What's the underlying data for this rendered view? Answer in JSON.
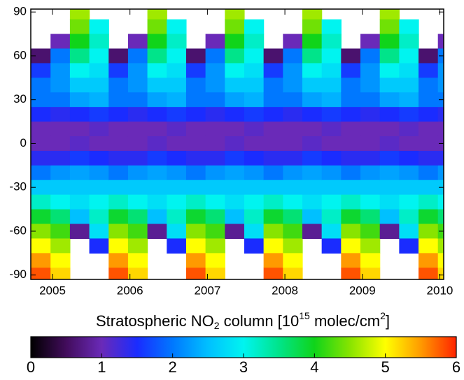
{
  "chart_data": {
    "type": "heatmap",
    "x": [
      2004.85,
      2005.1,
      2005.35,
      2005.6,
      2005.85,
      2006.1,
      2006.35,
      2006.6,
      2006.85,
      2007.1,
      2007.35,
      2007.6,
      2007.85,
      2008.1,
      2008.35,
      2008.6,
      2008.85,
      2009.1,
      2009.35,
      2009.6,
      2009.85,
      2010.1
    ],
    "y": [
      90,
      80,
      70,
      60,
      50,
      40,
      30,
      20,
      10,
      0,
      -10,
      -20,
      -30,
      -40,
      -50,
      -60,
      -70,
      -80,
      -90
    ],
    "z": [
      [
        null,
        null,
        null,
        0.6,
        1.6,
        2.0,
        2.0,
        1.5,
        1.0,
        1.0,
        1.4,
        2.0,
        2.6,
        3.2,
        3.9,
        4.5,
        5.0,
        5.5,
        5.8
      ],
      [
        null,
        null,
        1.0,
        2.0,
        2.2,
        2.2,
        2.0,
        1.4,
        1.0,
        1.0,
        1.4,
        2.2,
        2.6,
        3.0,
        3.6,
        4.2,
        4.6,
        5.0,
        5.2
      ],
      [
        4.6,
        4.4,
        4.0,
        3.5,
        3.0,
        2.6,
        2.3,
        1.5,
        1.0,
        1.1,
        1.6,
        2.3,
        2.6,
        2.8,
        2.5,
        0.8,
        null,
        null,
        null
      ],
      [
        null,
        3.0,
        3.2,
        3.0,
        2.8,
        2.6,
        2.4,
        1.6,
        1.1,
        1.0,
        1.5,
        2.2,
        2.6,
        3.0,
        3.2,
        2.8,
        1.5,
        null,
        null
      ],
      [
        null,
        null,
        null,
        0.6,
        1.6,
        2.0,
        2.0,
        1.5,
        1.0,
        1.0,
        1.4,
        2.0,
        2.6,
        3.2,
        3.9,
        4.5,
        5.0,
        5.5,
        5.8
      ],
      [
        null,
        null,
        1.0,
        2.0,
        2.2,
        2.2,
        2.0,
        1.4,
        1.0,
        1.0,
        1.4,
        2.2,
        2.6,
        3.0,
        3.6,
        4.2,
        4.6,
        5.0,
        5.2
      ],
      [
        4.6,
        4.4,
        4.0,
        3.5,
        3.0,
        2.6,
        2.3,
        1.5,
        1.0,
        1.1,
        1.6,
        2.3,
        2.6,
        2.8,
        2.5,
        0.8,
        null,
        null,
        null
      ],
      [
        null,
        3.0,
        3.2,
        3.0,
        2.8,
        2.6,
        2.4,
        1.6,
        1.1,
        1.0,
        1.5,
        2.2,
        2.6,
        3.0,
        3.2,
        2.8,
        1.5,
        null,
        null
      ],
      [
        null,
        null,
        null,
        0.6,
        1.6,
        2.0,
        2.0,
        1.5,
        1.0,
        1.0,
        1.4,
        2.0,
        2.6,
        3.2,
        3.9,
        4.5,
        5.0,
        5.5,
        5.8
      ],
      [
        null,
        null,
        1.0,
        2.0,
        2.2,
        2.2,
        2.0,
        1.4,
        1.0,
        1.0,
        1.4,
        2.2,
        2.6,
        3.0,
        3.6,
        4.2,
        4.6,
        5.0,
        5.2
      ],
      [
        4.6,
        4.4,
        4.0,
        3.5,
        3.0,
        2.6,
        2.3,
        1.5,
        1.0,
        1.1,
        1.6,
        2.3,
        2.6,
        2.8,
        2.5,
        0.8,
        null,
        null,
        null
      ],
      [
        null,
        3.0,
        3.2,
        3.0,
        2.8,
        2.6,
        2.4,
        1.6,
        1.1,
        1.0,
        1.5,
        2.2,
        2.6,
        3.0,
        3.2,
        2.8,
        1.5,
        null,
        null
      ],
      [
        null,
        null,
        null,
        0.6,
        1.6,
        2.0,
        2.0,
        1.5,
        1.0,
        1.0,
        1.4,
        2.0,
        2.6,
        3.2,
        3.9,
        4.5,
        5.0,
        5.5,
        5.8
      ],
      [
        null,
        null,
        1.0,
        2.0,
        2.2,
        2.2,
        2.0,
        1.4,
        1.0,
        1.0,
        1.4,
        2.2,
        2.6,
        3.0,
        3.6,
        4.2,
        4.6,
        5.0,
        5.2
      ],
      [
        4.6,
        4.4,
        4.0,
        3.5,
        3.0,
        2.6,
        2.3,
        1.5,
        1.0,
        1.1,
        1.6,
        2.3,
        2.6,
        2.8,
        2.5,
        0.8,
        null,
        null,
        null
      ],
      [
        null,
        3.0,
        3.2,
        3.0,
        2.8,
        2.6,
        2.4,
        1.6,
        1.1,
        1.0,
        1.5,
        2.2,
        2.6,
        3.0,
        3.2,
        2.8,
        1.5,
        null,
        null
      ],
      [
        null,
        null,
        null,
        0.6,
        1.6,
        2.0,
        2.0,
        1.5,
        1.0,
        1.0,
        1.4,
        2.0,
        2.6,
        3.2,
        3.9,
        4.5,
        5.0,
        5.5,
        5.8
      ],
      [
        null,
        null,
        1.0,
        2.0,
        2.2,
        2.2,
        2.0,
        1.4,
        1.0,
        1.0,
        1.4,
        2.2,
        2.6,
        3.0,
        3.6,
        4.2,
        4.6,
        5.0,
        5.2
      ],
      [
        4.6,
        4.4,
        4.0,
        3.5,
        3.0,
        2.6,
        2.3,
        1.5,
        1.0,
        1.1,
        1.6,
        2.3,
        2.6,
        2.8,
        2.5,
        0.8,
        null,
        null,
        null
      ],
      [
        null,
        3.0,
        3.2,
        3.0,
        2.8,
        2.6,
        2.4,
        1.6,
        1.1,
        1.0,
        1.5,
        2.2,
        2.6,
        3.0,
        3.2,
        2.8,
        1.5,
        null,
        null
      ],
      [
        null,
        null,
        null,
        0.6,
        1.6,
        2.0,
        2.0,
        1.5,
        1.0,
        1.0,
        1.4,
        2.0,
        2.6,
        3.2,
        3.9,
        4.5,
        5.0,
        5.5,
        5.8
      ],
      [
        null,
        null,
        1.0,
        2.0,
        2.2,
        2.2,
        2.0,
        1.4,
        1.0,
        1.0,
        1.4,
        2.2,
        2.6,
        3.0,
        3.6,
        4.2,
        4.6,
        5.0,
        5.2
      ]
    ],
    "xlim": [
      2004.72,
      2010.05
    ],
    "xticks": [
      2005,
      2006,
      2007,
      2008,
      2009,
      2010
    ],
    "ylim": [
      -93,
      92
    ],
    "yticks": [
      90,
      60,
      30,
      0,
      -30,
      -60,
      -90
    ],
    "colorbar_label": [
      "Stratospheric NO",
      "2",
      " column [10",
      "15",
      " molec/cm",
      "2",
      "]"
    ],
    "colorbar_lim": [
      0,
      6
    ],
    "colorbar_ticks": [
      0,
      1,
      2,
      3,
      4,
      5,
      6
    ],
    "colorscale": [
      [
        0,
        "#000000"
      ],
      [
        0.5,
        "#420c5c"
      ],
      [
        1,
        "#6a2ab8"
      ],
      [
        1.5,
        "#1a2cff"
      ],
      [
        2,
        "#0078ff"
      ],
      [
        2.5,
        "#00c0ff"
      ],
      [
        3,
        "#00f4f0"
      ],
      [
        3.5,
        "#00e48a"
      ],
      [
        4,
        "#10d41a"
      ],
      [
        4.5,
        "#88e400"
      ],
      [
        5,
        "#ffff00"
      ],
      [
        5.5,
        "#ff9a00"
      ],
      [
        6,
        "#ff2400"
      ]
    ]
  }
}
